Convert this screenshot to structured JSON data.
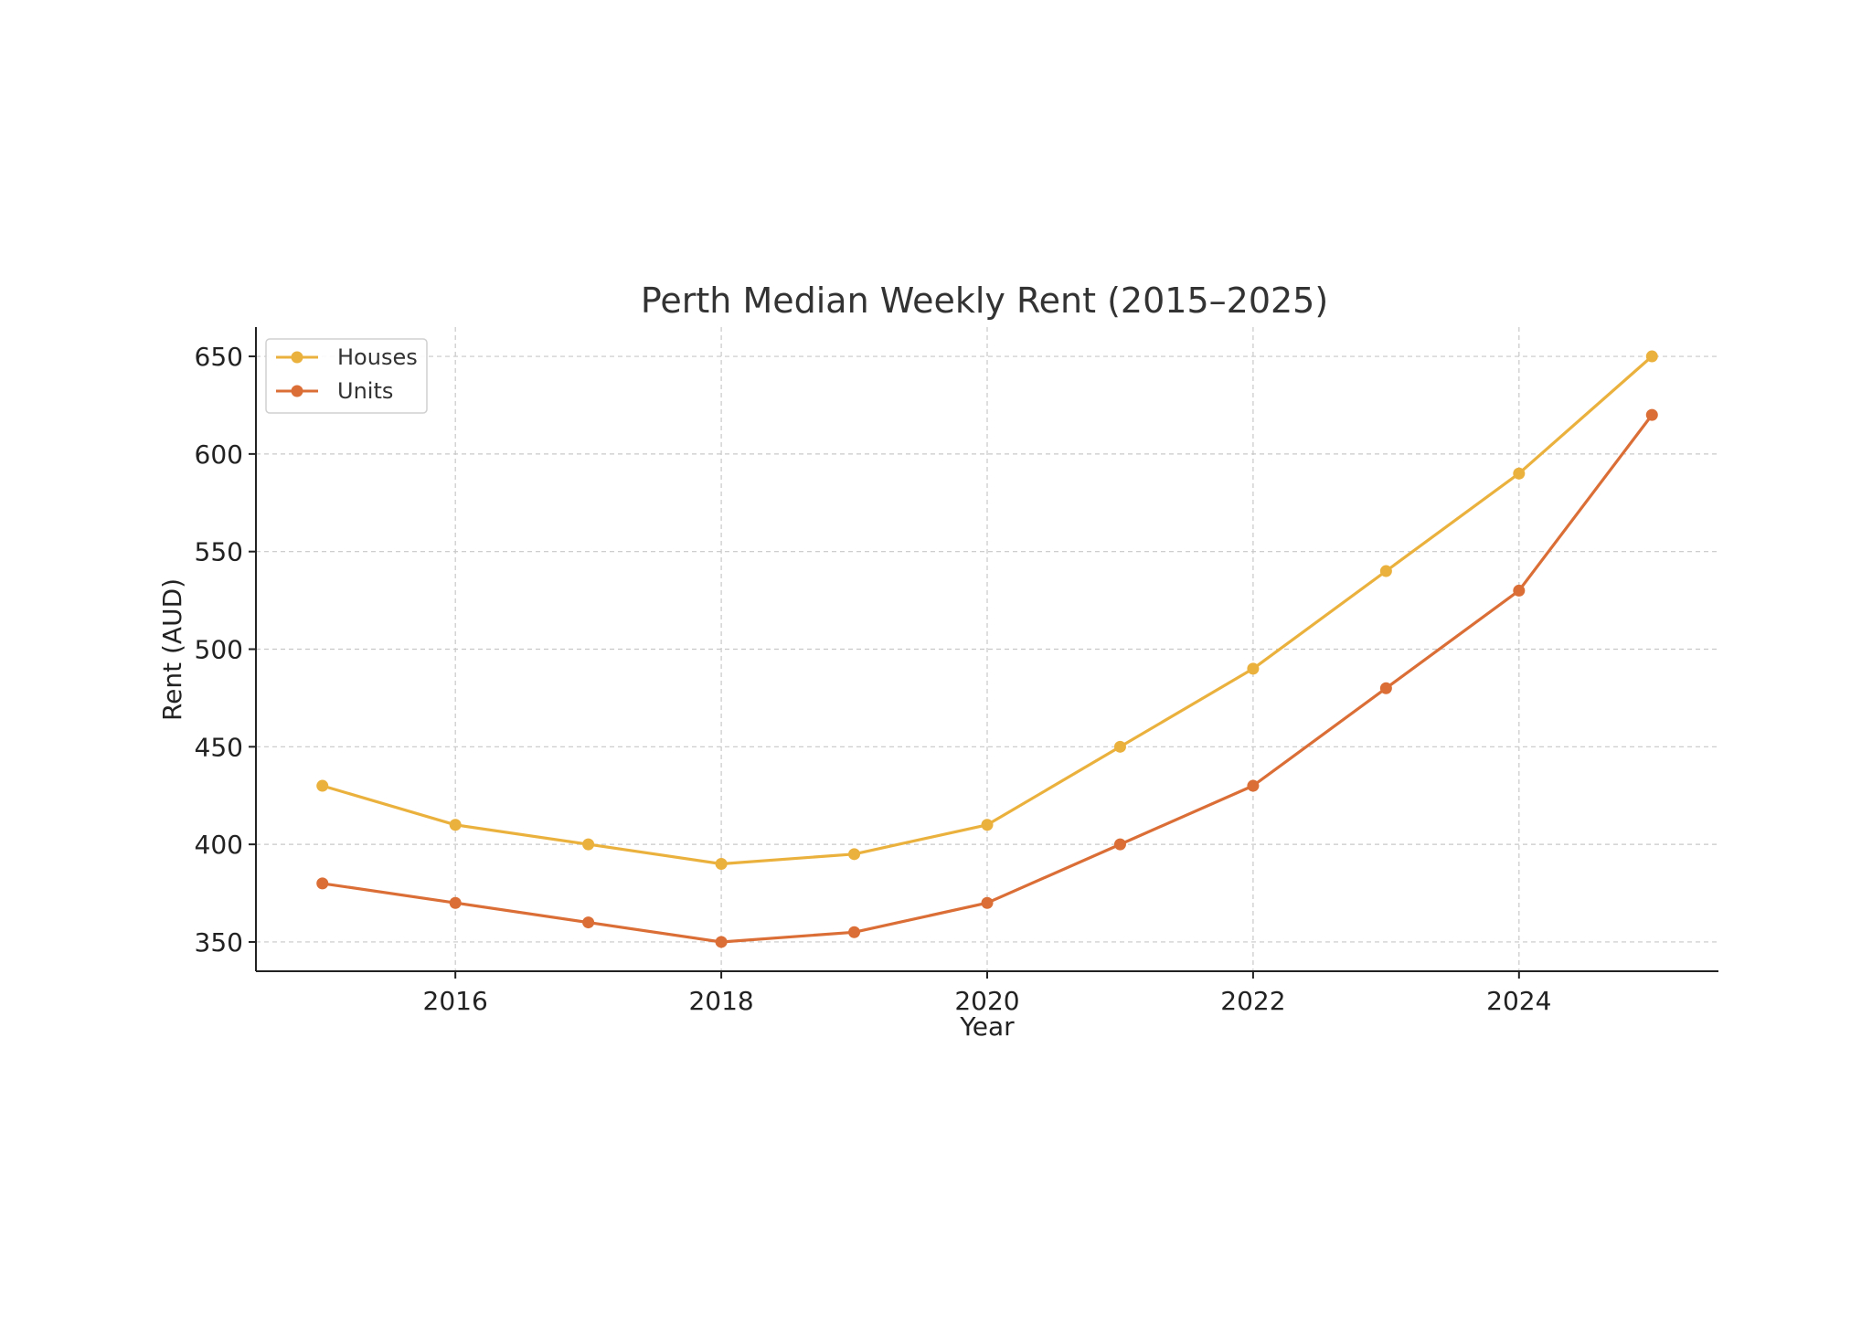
{
  "chart_data": {
    "type": "line",
    "title": "Perth Median Weekly Rent (2015–2025)",
    "xlabel": "Year",
    "ylabel": "Rent (AUD)",
    "x": [
      2015,
      2016,
      2017,
      2018,
      2019,
      2020,
      2021,
      2022,
      2023,
      2024,
      2025
    ],
    "xlim": [
      2014.5,
      2025.5
    ],
    "ylim": [
      335,
      665
    ],
    "xticks": [
      2016,
      2018,
      2020,
      2022,
      2024
    ],
    "yticks": [
      350,
      400,
      450,
      500,
      550,
      600,
      650
    ],
    "xtick_labels": [
      "2016",
      "2018",
      "2020",
      "2022",
      "2024"
    ],
    "ytick_labels": [
      "350",
      "400",
      "450",
      "500",
      "550",
      "600",
      "650"
    ],
    "grid": true,
    "legend_position": "top-left",
    "series": [
      {
        "name": "Houses",
        "color": "#ebb13d",
        "values": [
          430,
          410,
          400,
          390,
          395,
          410,
          450,
          490,
          540,
          590,
          650
        ]
      },
      {
        "name": "Units",
        "color": "#da6e36",
        "values": [
          380,
          370,
          360,
          350,
          355,
          370,
          400,
          430,
          480,
          530,
          620
        ]
      }
    ]
  }
}
